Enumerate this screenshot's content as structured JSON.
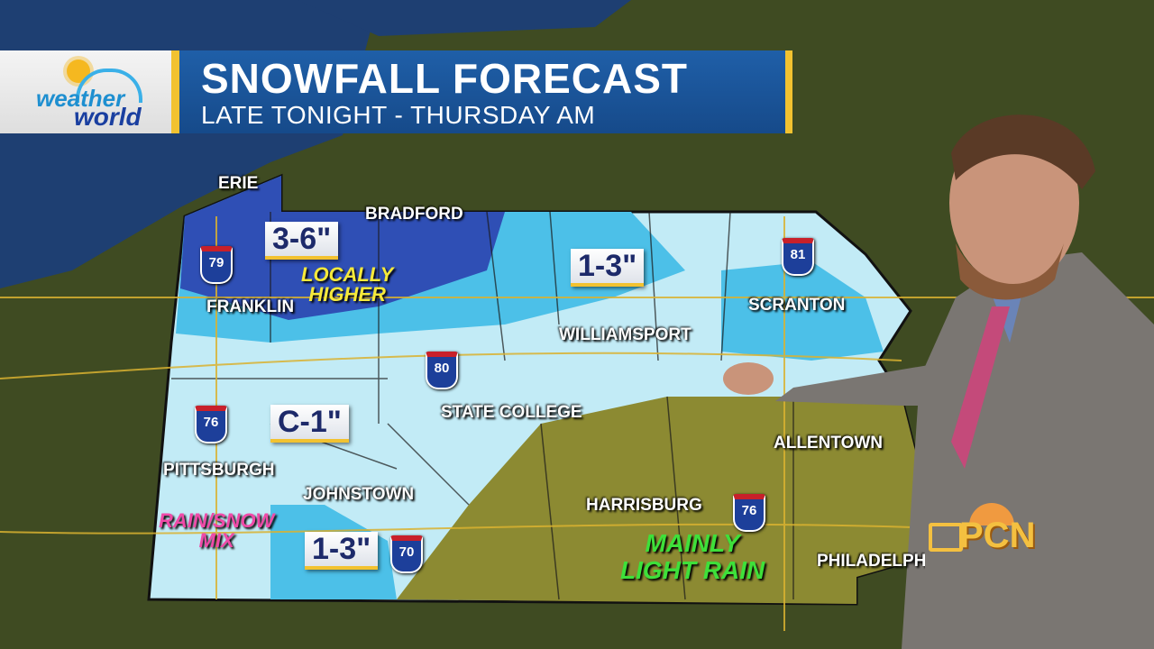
{
  "banner": {
    "title": "SNOWFALL FORECAST",
    "subtitle": "LATE TONIGHT - THURSDAY AM",
    "logo": {
      "line1": "weather",
      "line2": "world"
    },
    "accent_color": "#f2c230",
    "bar_color": "#1f5fa8"
  },
  "cities": [
    {
      "name": "ERIE"
    },
    {
      "name": "BRADFORD"
    },
    {
      "name": "FRANKLIN"
    },
    {
      "name": "WILLIAMSPORT"
    },
    {
      "name": "SCRANTON"
    },
    {
      "name": "STATE COLLEGE"
    },
    {
      "name": "ALLENTOWN"
    },
    {
      "name": "PITTSBURGH"
    },
    {
      "name": "JOHNSTOWN"
    },
    {
      "name": "HARRISBURG"
    },
    {
      "name": "PHILADELPHIA"
    }
  ],
  "amounts": [
    "3-6\"",
    "1-3\"",
    "C-1\"",
    "1-3\""
  ],
  "notes": {
    "locally_higher": [
      "LOCALLY",
      "HIGHER"
    ],
    "rain_snow": [
      "RAIN/SNOW",
      "MIX"
    ],
    "light_rain": [
      "MAINLY",
      "LIGHT RAIN"
    ]
  },
  "interstates": [
    "79",
    "81",
    "80",
    "76",
    "76",
    "70"
  ],
  "network_logo": "PCN",
  "legend_colors": {
    "heavy_snow": "#2f4fb5",
    "moderate_snow": "#4cc0e8",
    "light_snow": "#bfe9f5",
    "rain": "#8a8a30"
  }
}
